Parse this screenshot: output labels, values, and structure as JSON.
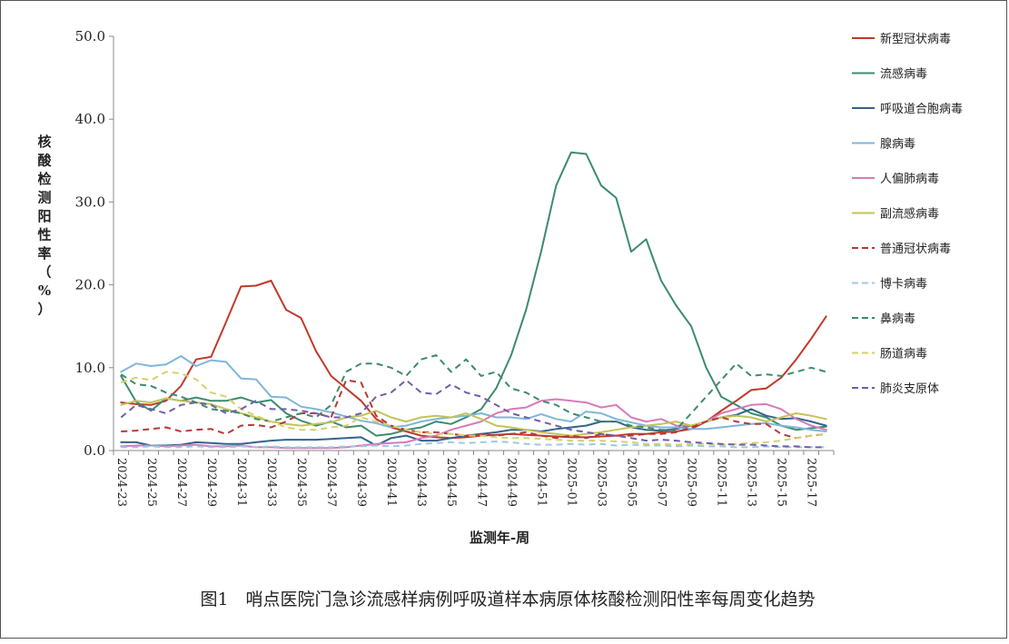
{
  "chart_data": {
    "type": "line",
    "title": "",
    "caption": "图1　哨点医院门急诊流感样病例呼吸道样本病原体核酸检测阳性率每周变化趋势",
    "xlabel": "监测年-周",
    "ylabel": "核酸检测阳性率（%）",
    "ylim": [
      0,
      50
    ],
    "yticks": [
      "0.0",
      "10.0",
      "20.0",
      "30.0",
      "40.0",
      "50.0"
    ],
    "grid": false,
    "legend_position": "right",
    "x": [
      "2024-23",
      "2024-24",
      "2024-25",
      "2024-26",
      "2024-27",
      "2024-28",
      "2024-29",
      "2024-30",
      "2024-31",
      "2024-32",
      "2024-33",
      "2024-34",
      "2024-35",
      "2024-36",
      "2024-37",
      "2024-38",
      "2024-39",
      "2024-40",
      "2024-41",
      "2024-42",
      "2024-43",
      "2024-44",
      "2024-45",
      "2024-46",
      "2024-47",
      "2024-48",
      "2024-49",
      "2024-50",
      "2024-51",
      "2024-52",
      "2025-01",
      "2025-02",
      "2025-03",
      "2025-04",
      "2025-05",
      "2025-06",
      "2025-07",
      "2025-08",
      "2025-09",
      "2025-10",
      "2025-11",
      "2025-12",
      "2025-13",
      "2025-14",
      "2025-15",
      "2025-16",
      "2025-17",
      "2025-18"
    ],
    "x_tick_labels": [
      "2024-23",
      "2024-25",
      "2024-27",
      "2024-29",
      "2024-31",
      "2024-33",
      "2024-35",
      "2024-37",
      "2024-39",
      "2024-41",
      "2024-43",
      "2024-45",
      "2024-47",
      "2024-49",
      "2024-51",
      "2025-01",
      "2025-03",
      "2025-05",
      "2025-07",
      "2025-09",
      "2025-11",
      "2025-13",
      "2025-15",
      "2025-17"
    ],
    "series": [
      {
        "name": "新型冠状病毒",
        "color": "#c0392b",
        "dash": "solid",
        "values": [
          5.8,
          5.6,
          5.5,
          6.0,
          7.8,
          11.0,
          11.3,
          15.5,
          19.8,
          19.9,
          20.5,
          17.0,
          16.0,
          12.0,
          9.0,
          7.5,
          6.0,
          3.8,
          2.8,
          2.3,
          1.8,
          1.6,
          1.5,
          1.6,
          1.8,
          1.9,
          2.0,
          1.9,
          1.8,
          1.7,
          1.6,
          1.6,
          1.7,
          1.8,
          2.0,
          2.0,
          2.2,
          2.3,
          2.6,
          3.5,
          4.8,
          6.0,
          7.3,
          7.5,
          8.8,
          11.0,
          13.5,
          16.2
        ]
      },
      {
        "name": "流感病毒",
        "color": "#3d8b6c",
        "dash": "solid",
        "values": [
          9.0,
          5.9,
          4.8,
          6.3,
          6.0,
          6.4,
          6.0,
          6.0,
          6.4,
          5.8,
          6.1,
          4.5,
          3.6,
          3.0,
          3.5,
          2.8,
          3.0,
          1.8,
          2.0,
          2.5,
          2.8,
          3.5,
          3.2,
          4.0,
          5.0,
          7.5,
          11.5,
          17.0,
          24.0,
          32.0,
          36.0,
          35.8,
          32.0,
          30.5,
          24.0,
          25.5,
          20.5,
          17.5,
          15.0,
          10.0,
          6.5,
          5.5,
          4.5,
          4.0,
          3.0,
          2.5,
          2.7,
          2.9
        ]
      },
      {
        "name": "呼吸道合胞病毒",
        "color": "#34638c",
        "dash": "solid",
        "values": [
          1.0,
          1.0,
          0.6,
          0.6,
          0.7,
          1.0,
          0.9,
          0.8,
          0.8,
          1.0,
          1.2,
          1.3,
          1.3,
          1.3,
          1.4,
          1.5,
          1.6,
          0.6,
          1.5,
          1.8,
          1.2,
          1.2,
          1.5,
          1.8,
          2.0,
          2.2,
          2.5,
          2.5,
          2.3,
          2.6,
          2.8,
          3.0,
          3.5,
          3.5,
          2.8,
          2.5,
          2.4,
          2.6,
          3.0,
          3.5,
          4.0,
          4.3,
          5.0,
          4.2,
          3.8,
          3.9,
          3.5,
          3.0
        ]
      },
      {
        "name": "腺病毒",
        "color": "#7fb6dd",
        "dash": "solid",
        "values": [
          9.5,
          10.5,
          10.2,
          10.4,
          11.4,
          10.2,
          10.9,
          10.7,
          8.7,
          8.6,
          6.5,
          6.4,
          5.3,
          5.0,
          4.6,
          4.1,
          3.6,
          3.3,
          2.8,
          3.0,
          3.5,
          3.8,
          4.0,
          4.2,
          4.5,
          4.0,
          4.0,
          3.8,
          4.4,
          3.8,
          3.5,
          4.7,
          4.5,
          3.8,
          3.4,
          3.0,
          2.8,
          2.8,
          2.6,
          2.6,
          2.8,
          3.0,
          3.2,
          3.3,
          3.0,
          2.8,
          2.5,
          2.3
        ]
      },
      {
        "name": "人偏肺病毒",
        "color": "#d77bb8",
        "dash": "solid",
        "values": [
          0.5,
          0.6,
          0.6,
          0.5,
          0.6,
          0.7,
          0.5,
          0.5,
          0.6,
          0.4,
          0.4,
          0.3,
          0.3,
          0.3,
          0.3,
          0.4,
          0.6,
          0.8,
          0.9,
          1.0,
          1.5,
          1.8,
          2.5,
          3.0,
          3.5,
          4.5,
          5.0,
          5.2,
          6.0,
          6.2,
          6.0,
          5.8,
          5.2,
          5.5,
          4.0,
          3.5,
          3.8,
          3.0,
          3.0,
          3.5,
          4.5,
          5.0,
          5.5,
          5.6,
          5.0,
          3.8,
          3.0,
          2.5
        ]
      },
      {
        "name": "副流感病毒",
        "color": "#c4c35a",
        "dash": "solid",
        "values": [
          5.5,
          6.0,
          5.8,
          6.3,
          6.0,
          5.8,
          5.6,
          5.0,
          4.5,
          4.0,
          3.5,
          3.2,
          3.0,
          3.2,
          3.4,
          4.0,
          4.2,
          4.8,
          4.0,
          3.5,
          4.0,
          4.2,
          4.0,
          4.5,
          3.8,
          3.0,
          2.8,
          2.5,
          2.2,
          2.0,
          1.8,
          2.0,
          2.2,
          2.5,
          2.8,
          3.0,
          3.2,
          3.5,
          3.0,
          3.5,
          4.0,
          4.2,
          4.0,
          3.5,
          4.0,
          4.5,
          4.2,
          3.8
        ]
      },
      {
        "name": "普通冠状病毒",
        "color": "#b53a36",
        "dash": "dashed",
        "values": [
          2.3,
          2.4,
          2.6,
          2.8,
          2.3,
          2.5,
          2.6,
          2.0,
          3.0,
          3.1,
          2.8,
          3.5,
          4.5,
          4.5,
          4.0,
          8.5,
          8.2,
          4.2,
          3.0,
          2.5,
          2.2,
          2.2,
          2.0,
          1.8,
          2.0,
          1.8,
          2.0,
          2.2,
          1.8,
          1.5,
          1.8,
          1.5,
          2.0,
          1.8,
          1.8,
          2.0,
          2.0,
          2.2,
          2.8,
          3.5,
          4.0,
          3.5,
          3.2,
          3.2,
          2.0,
          1.5,
          1.8,
          2.0
        ]
      },
      {
        "name": "博卡病毒",
        "color": "#9cc9e8",
        "dash": "dashed",
        "values": [
          0.4,
          0.4,
          0.5,
          0.4,
          0.4,
          0.5,
          0.4,
          0.4,
          0.5,
          0.4,
          0.5,
          0.4,
          0.4,
          0.4,
          0.4,
          0.5,
          0.5,
          0.6,
          0.5,
          0.6,
          0.8,
          0.9,
          1.0,
          0.9,
          1.0,
          1.1,
          1.0,
          0.8,
          0.7,
          0.7,
          0.8,
          0.7,
          0.8,
          0.6,
          0.7,
          0.6,
          0.6,
          0.5,
          0.6,
          0.5,
          0.5,
          0.4,
          0.4,
          0.5,
          0.4,
          0.4,
          0.4,
          0.4
        ]
      },
      {
        "name": "鼻病毒",
        "color": "#3d8b6c",
        "dash": "dashed",
        "values": [
          9.2,
          8.0,
          7.8,
          7.0,
          6.5,
          5.8,
          5.0,
          4.8,
          4.5,
          3.8,
          3.5,
          4.0,
          4.5,
          4.0,
          5.5,
          9.5,
          10.5,
          10.5,
          10.0,
          9.0,
          11.0,
          11.5,
          9.5,
          11.0,
          9.0,
          9.5,
          7.5,
          7.0,
          6.0,
          5.5,
          4.5,
          4.0,
          3.5,
          3.5,
          3.0,
          2.8,
          2.5,
          2.5,
          4.5,
          6.5,
          8.5,
          10.5,
          9.0,
          9.2,
          9.0,
          9.5,
          10.0,
          9.5
        ]
      },
      {
        "name": "肠道病毒",
        "color": "#d6d06a",
        "dash": "dashed",
        "values": [
          8.2,
          8.8,
          8.5,
          9.5,
          9.3,
          8.6,
          7.0,
          6.5,
          5.0,
          4.2,
          3.5,
          2.8,
          2.5,
          2.5,
          2.8,
          3.0,
          4.0,
          3.5,
          3.0,
          2.5,
          2.2,
          2.0,
          2.0,
          1.8,
          1.8,
          1.6,
          1.5,
          1.5,
          1.4,
          1.3,
          1.2,
          1.2,
          1.2,
          1.1,
          1.0,
          0.8,
          0.8,
          0.7,
          0.8,
          0.8,
          0.7,
          0.8,
          0.9,
          1.0,
          1.2,
          1.5,
          1.8,
          2.0
        ]
      },
      {
        "name": "肺炎支原体",
        "color": "#6f5fa8",
        "dash": "dashed",
        "values": [
          4.0,
          5.5,
          5.0,
          4.5,
          5.5,
          5.8,
          5.5,
          4.5,
          5.0,
          6.0,
          5.0,
          5.0,
          4.8,
          4.5,
          4.0,
          4.0,
          4.5,
          6.5,
          7.0,
          8.5,
          7.0,
          6.8,
          8.0,
          7.0,
          6.5,
          5.5,
          4.5,
          4.0,
          3.5,
          3.0,
          2.5,
          2.2,
          2.0,
          1.8,
          1.5,
          1.2,
          1.3,
          1.2,
          1.0,
          0.9,
          0.8,
          0.7,
          0.7,
          0.6,
          0.5,
          0.5,
          0.4,
          0.4
        ]
      }
    ]
  }
}
